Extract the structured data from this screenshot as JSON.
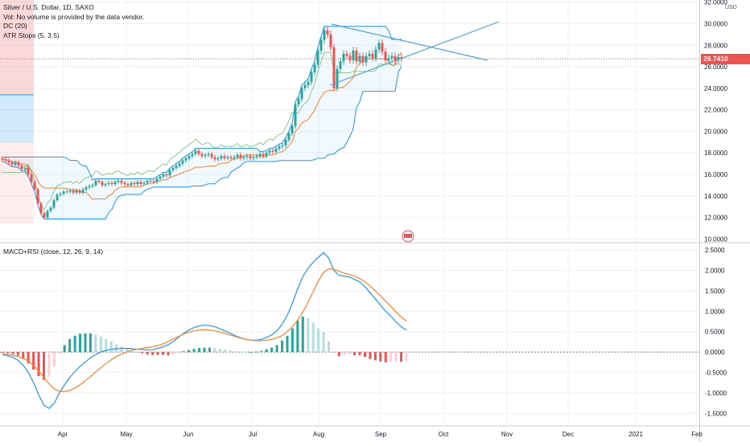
{
  "header": {
    "title": "Silver / U.S. Dollar, 1D, SAXO",
    "vol_note": "Vol: No volume is provided by the data vendor.",
    "dc": "DC (20)",
    "atr": "ATR Stops (5, 3.5)",
    "macd_rsi": "MACD+RSI (close, 12, 26, 9, 14)",
    "currency": "USD",
    "last_price": "26.7410"
  },
  "colors": {
    "up": "#26a69a",
    "down": "#ef5350",
    "dc_band": "#2196f3",
    "macd": "#2196f3",
    "signal": "#ff7f24",
    "trend": "#4aa3df",
    "grid": "#eef1f5"
  },
  "chart_data": [
    {
      "type": "candlestick",
      "price_axis": {
        "ticks": [
          "10.0000",
          "12.0000",
          "14.0000",
          "16.0000",
          "18.0000",
          "20.0000",
          "22.0000",
          "24.0000",
          "26.0000",
          "28.0000",
          "30.0000",
          "32.0000"
        ],
        "ylim": [
          9.8,
          32.2
        ]
      },
      "time_axis": {
        "ticks": [
          "Apr",
          "May",
          "Jun",
          "Jul",
          "Aug",
          "Sep",
          "Oct",
          "Nov",
          "Dec",
          "2021",
          "Feb"
        ]
      },
      "last_price": 26.741,
      "closes": [
        17.4,
        17.3,
        17.1,
        16.9,
        17.1,
        16.8,
        16.5,
        16.6,
        16.0,
        15.3,
        14.6,
        13.3,
        12.4,
        12.0,
        12.6,
        12.9,
        13.6,
        14.1,
        14.2,
        14.4,
        14.4,
        14.5,
        14.3,
        14.5,
        14.3,
        14.6,
        14.8,
        14.9,
        15.0,
        15.4,
        15.3,
        15.0,
        15.1,
        15.2,
        15.1,
        15.3,
        15.4,
        15.2,
        15.1,
        15.0,
        15.2,
        15.1,
        15.3,
        15.1,
        15.2,
        15.4,
        15.4,
        15.3,
        15.6,
        15.8,
        16.0,
        15.9,
        16.4,
        16.6,
        16.8,
        17.0,
        17.3,
        17.5,
        17.7,
        17.9,
        18.2,
        17.9,
        17.7,
        17.8,
        17.9,
        17.6,
        17.4,
        17.5,
        17.7,
        17.5,
        17.6,
        17.5,
        17.6,
        17.8,
        17.5,
        17.6,
        17.7,
        17.5,
        17.6,
        17.7,
        17.9,
        17.7,
        18.0,
        18.2,
        18.1,
        18.4,
        18.6,
        18.7,
        19.2,
        19.8,
        20.5,
        22.5,
        23.0,
        24.0,
        24.3,
        24.6,
        25.5,
        26.2,
        27.5,
        28.5,
        29.4,
        29.0,
        27.8,
        24.0,
        25.8,
        26.5,
        27.2,
        27.0,
        26.6,
        27.5,
        26.5,
        27.0,
        26.4,
        27.0,
        27.2,
        26.8,
        27.6,
        28.2,
        27.4,
        26.6,
        26.8,
        27.0,
        26.6,
        26.9,
        26.74
      ],
      "overlays": [
        "Donchian Channel (20)",
        "ATR Stops (5, 3.5)",
        "Symmetrical triangle trendlines"
      ]
    },
    {
      "type": "line",
      "name_label": "MACD+RSI (close, 12, 26, 9, 14)",
      "y_axis": {
        "ticks": [
          "2.5000",
          "2.0000",
          "1.5000",
          "1.0000",
          "0.5000",
          "0.0000",
          "-0.5000",
          "-1.0000",
          "-1.5000"
        ],
        "ylim": [
          -1.75,
          2.62
        ]
      },
      "macd": [
        -0.06,
        -0.09,
        -0.13,
        -0.2,
        -0.32,
        -0.5,
        -0.75,
        -1.05,
        -1.3,
        -1.38,
        -1.25,
        -1.0,
        -0.8,
        -0.62,
        -0.48,
        -0.35,
        -0.24,
        -0.14,
        -0.06,
        0.0,
        0.04,
        0.07,
        0.08,
        0.09,
        0.09,
        0.08,
        0.07,
        0.06,
        0.05,
        0.06,
        0.09,
        0.13,
        0.18,
        0.26,
        0.36,
        0.46,
        0.54,
        0.6,
        0.64,
        0.66,
        0.65,
        0.62,
        0.57,
        0.52,
        0.46,
        0.4,
        0.35,
        0.31,
        0.29,
        0.29,
        0.31,
        0.36,
        0.42,
        0.52,
        0.68,
        0.9,
        1.2,
        1.55,
        1.85,
        2.05,
        2.2,
        2.32,
        2.44,
        2.3,
        2.0,
        1.88,
        1.86,
        1.84,
        1.78,
        1.72,
        1.6,
        1.45,
        1.3,
        1.15,
        1.0,
        0.88,
        0.74,
        0.62,
        0.54
      ],
      "signal": [
        -0.05,
        -0.06,
        -0.08,
        -0.11,
        -0.15,
        -0.22,
        -0.32,
        -0.46,
        -0.62,
        -0.78,
        -0.9,
        -0.96,
        -0.97,
        -0.94,
        -0.88,
        -0.8,
        -0.7,
        -0.6,
        -0.49,
        -0.38,
        -0.28,
        -0.19,
        -0.11,
        -0.05,
        0.0,
        0.04,
        0.07,
        0.09,
        0.11,
        0.13,
        0.16,
        0.2,
        0.26,
        0.32,
        0.38,
        0.44,
        0.49,
        0.52,
        0.54,
        0.55,
        0.54,
        0.52,
        0.49,
        0.46,
        0.42,
        0.38,
        0.34,
        0.31,
        0.29,
        0.28,
        0.28,
        0.29,
        0.31,
        0.35,
        0.4,
        0.5,
        0.62,
        0.78,
        0.98,
        1.22,
        1.48,
        1.74,
        1.95,
        2.04,
        2.03,
        1.98,
        1.93,
        1.9,
        1.86,
        1.8,
        1.72,
        1.62,
        1.5,
        1.38,
        1.25,
        1.12,
        0.98,
        0.86,
        0.76
      ]
    }
  ]
}
